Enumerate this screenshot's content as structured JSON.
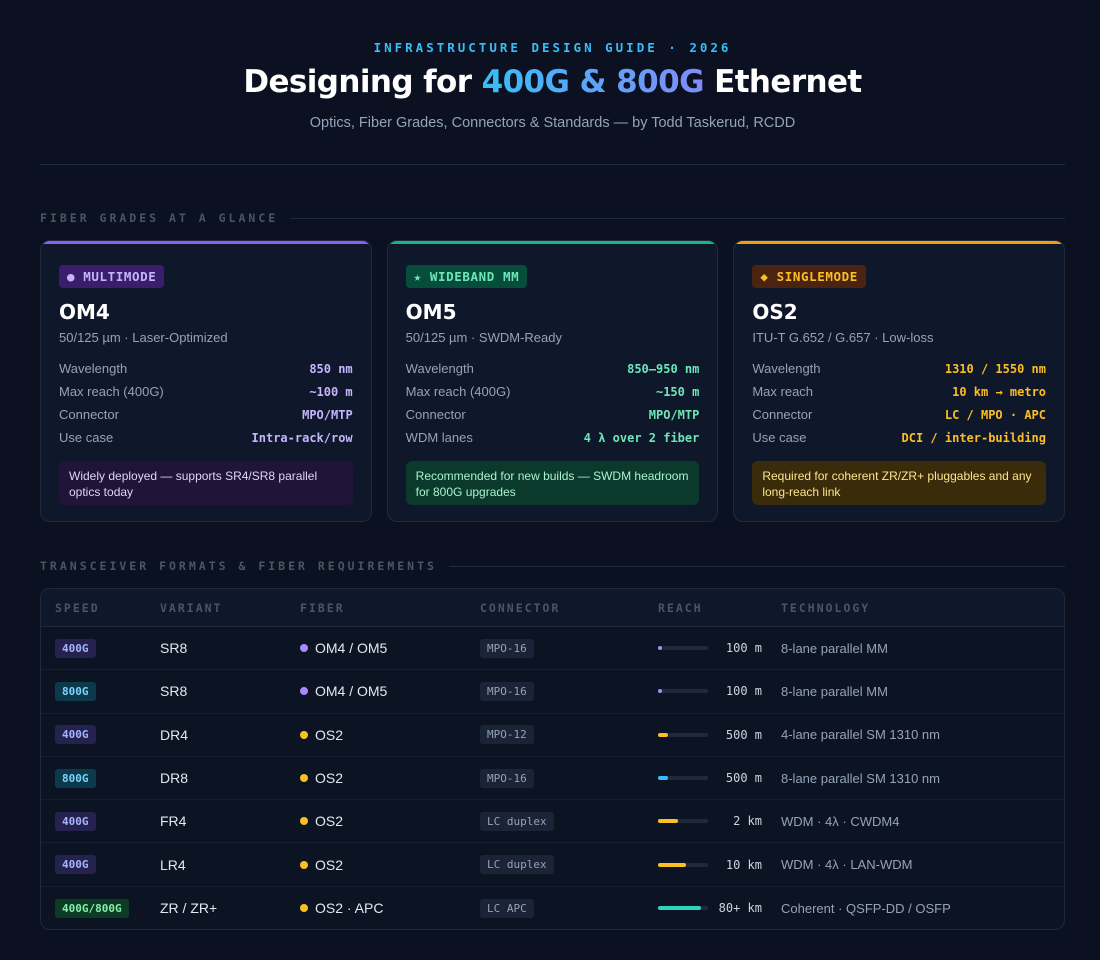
{
  "header": {
    "eyebrow": "INFRASTRUCTURE DESIGN GUIDE · 2026",
    "title_pre": "Designing for ",
    "title_hl": "400G & 800G",
    "title_post": " Ethernet",
    "subtitle": "Optics, Fiber Grades, Connectors & Standards — by Todd Taskerud, RCDD"
  },
  "sections": {
    "fiber": "FIBER GRADES AT A GLANCE",
    "transceivers": "TRANSCEIVER FORMATS & FIBER REQUIREMENTS"
  },
  "cards": [
    {
      "badge": "● MULTIMODE",
      "name": "OM4",
      "sub": "50/125 µm · Laser-Optimized",
      "specs": [
        {
          "k": "Wavelength",
          "v": "850 nm"
        },
        {
          "k": "Max reach (400G)",
          "v": "~100 m"
        },
        {
          "k": "Connector",
          "v": "MPO/MTP"
        },
        {
          "k": "Use case",
          "v": "Intra-rack/row"
        }
      ],
      "note": "Widely deployed — supports SR4/SR8 parallel optics today"
    },
    {
      "badge": "★ WIDEBAND MM",
      "name": "OM5",
      "sub": "50/125 µm · SWDM-Ready",
      "specs": [
        {
          "k": "Wavelength",
          "v": "850–950 nm"
        },
        {
          "k": "Max reach (400G)",
          "v": "~150 m"
        },
        {
          "k": "Connector",
          "v": "MPO/MTP"
        },
        {
          "k": "WDM lanes",
          "v": "4 λ over 2 fiber"
        }
      ],
      "note": "Recommended for new builds — SWDM headroom for 800G upgrades"
    },
    {
      "badge": "◆ SINGLEMODE",
      "name": "OS2",
      "sub": "ITU-T G.652 / G.657 · Low-loss",
      "specs": [
        {
          "k": "Wavelength",
          "v": "1310 / 1550 nm"
        },
        {
          "k": "Max reach",
          "v": "10 km → metro"
        },
        {
          "k": "Connector",
          "v": "LC / MPO · APC"
        },
        {
          "k": "Use case",
          "v": "DCI / inter-building"
        }
      ],
      "note": "Required for coherent ZR/ZR+ pluggables and any long-reach link"
    }
  ],
  "table": {
    "headers": [
      "SPEED",
      "VARIANT",
      "FIBER",
      "CONNECTOR",
      "REACH",
      "TECHNOLOGY"
    ],
    "rows": [
      {
        "speed": "400G",
        "variant": "SR8",
        "fiber": "OM4 / OM5",
        "connector": "MPO-16",
        "reach": "100 m",
        "tech": "8-lane parallel MM"
      },
      {
        "speed": "800G",
        "variant": "SR8",
        "fiber": "OM4 / OM5",
        "connector": "MPO-16",
        "reach": "100 m",
        "tech": "8-lane parallel MM"
      },
      {
        "speed": "400G",
        "variant": "DR4",
        "fiber": "OS2",
        "connector": "MPO-12",
        "reach": "500 m",
        "tech": "4-lane parallel SM 1310 nm"
      },
      {
        "speed": "800G",
        "variant": "DR8",
        "fiber": "OS2",
        "connector": "MPO-16",
        "reach": "500 m",
        "tech": "8-lane parallel SM 1310 nm"
      },
      {
        "speed": "400G",
        "variant": "FR4",
        "fiber": "OS2",
        "connector": "LC duplex",
        "reach": "2 km",
        "tech": "WDM · 4λ · CWDM4"
      },
      {
        "speed": "400G",
        "variant": "LR4",
        "fiber": "OS2",
        "connector": "LC duplex",
        "reach": "10 km",
        "tech": "WDM · 4λ · LAN-WDM"
      },
      {
        "speed": "400G/800G",
        "variant": "ZR / ZR+",
        "fiber": "OS2 · APC",
        "connector": "LC APC",
        "reach": "80+ km",
        "tech": "Coherent · QSFP-DD / OSFP"
      }
    ],
    "reach_fill": [
      0.08,
      0.08,
      0.2,
      0.2,
      0.4,
      0.55,
      0.85
    ],
    "colors": {
      "multimode": "#a78bfa",
      "singlemode": "#fbbf24",
      "coherent": "#2dd4bf",
      "sm_800": "#38bdf8"
    }
  }
}
